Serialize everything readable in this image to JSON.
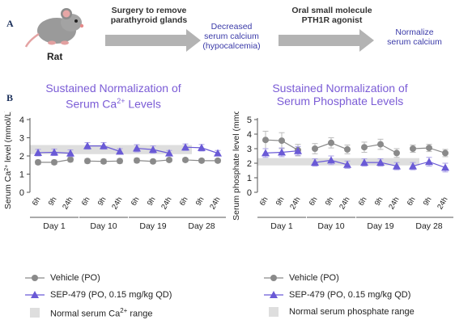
{
  "panels": {
    "a": "A",
    "b": "B"
  },
  "pipeline": {
    "animal_label": "Rat",
    "step1_text_line1": "Surgery to remove",
    "step1_text_line2": "parathyroid glands",
    "result1_line1": "Decreased",
    "result1_line2": "serum calcium",
    "result1_line3": "(hypocalcemia)",
    "step2_text_line1": "Oral small molecule",
    "step2_text_line2": "PTH1R agonist",
    "result2_line1": "Normalize",
    "result2_line2": "serum calcium"
  },
  "legend": {
    "vehicle": "Vehicle (PO)",
    "sep": "SEP-479 (PO, 0.15 mg/kg QD)",
    "normal_ca_prefix": "Normal serum Ca",
    "normal_ca_sup": "2+",
    "normal_ca_suffix": " range",
    "normal_phos": "Normal serum phosphate range"
  },
  "colors": {
    "vehicle": "#8a8a8a",
    "sep": "#6a5ad6",
    "band": "#dedede",
    "title": "#7b5cd6"
  },
  "chart_data": [
    {
      "type": "line",
      "title_line1": "Sustained Normalization of",
      "title_line2_prefix": "Serum Ca",
      "title_line2_sup": "2+",
      "title_line2_suffix": " Levels",
      "ylabel_prefix": "Serum Ca",
      "ylabel_sup": "2+",
      "ylabel_suffix": " level (mmol/L)",
      "ylim": [
        0,
        4
      ],
      "yticks": [
        "0",
        "1",
        "2",
        "3",
        "4"
      ],
      "groups": [
        "Day 1",
        "Day 10",
        "Day 19",
        "Day 28"
      ],
      "timepoints": [
        "6h",
        "9h",
        "24h"
      ],
      "normal_range": [
        2.1,
        2.6
      ],
      "series": [
        {
          "name": "Vehicle (PO)",
          "values": [
            [
              1.65,
              1.65,
              1.8
            ],
            [
              1.72,
              1.7,
              1.72
            ],
            [
              1.75,
              1.7,
              1.78
            ],
            [
              1.78,
              1.74,
              1.74
            ]
          ],
          "errors": [
            [
              0.12,
              0.12,
              0.12
            ],
            [
              0.12,
              0.12,
              0.12
            ],
            [
              0.12,
              0.1,
              0.1
            ],
            [
              0.1,
              0.1,
              0.1
            ]
          ]
        },
        {
          "name": "SEP-479 (PO, 0.15 mg/kg QD)",
          "values": [
            [
              2.18,
              2.2,
              2.15
            ],
            [
              2.55,
              2.55,
              2.25
            ],
            [
              2.42,
              2.35,
              2.15
            ],
            [
              2.48,
              2.45,
              2.15
            ]
          ],
          "errors": [
            [
              0.18,
              0.18,
              0.18
            ],
            [
              0.18,
              0.18,
              0.15
            ],
            [
              0.2,
              0.2,
              0.15
            ],
            [
              0.18,
              0.18,
              0.15
            ]
          ]
        }
      ]
    },
    {
      "type": "line",
      "title_line1": "Sustained Normalization of",
      "title_line2_prefix": "Serum Phosphate Levels",
      "title_line2_sup": "",
      "title_line2_suffix": "",
      "ylabel_prefix": "Serum phosphate level (mmol/L)",
      "ylabel_sup": "",
      "ylabel_suffix": "",
      "ylim": [
        0,
        5
      ],
      "yticks": [
        "0",
        "1",
        "2",
        "3",
        "4",
        "5"
      ],
      "groups": [
        "Day 1",
        "Day 10",
        "Day 19",
        "Day 28"
      ],
      "timepoints": [
        "6h",
        "9h",
        "24h"
      ],
      "normal_range": [
        1.85,
        2.35
      ],
      "series": [
        {
          "name": "Vehicle (PO)",
          "values": [
            [
              3.6,
              3.55,
              2.9
            ],
            [
              3.0,
              3.4,
              2.95
            ],
            [
              3.1,
              3.3,
              2.7
            ],
            [
              3.0,
              3.05,
              2.7
            ]
          ],
          "errors": [
            [
              0.6,
              0.55,
              0.4
            ],
            [
              0.35,
              0.35,
              0.3
            ],
            [
              0.35,
              0.35,
              0.3
            ],
            [
              0.25,
              0.25,
              0.25
            ]
          ]
        },
        {
          "name": "SEP-479 (PO, 0.15 mg/kg QD)",
          "values": [
            [
              2.7,
              2.75,
              2.85
            ],
            [
              2.05,
              2.2,
              1.9
            ],
            [
              2.05,
              2.05,
              1.8
            ],
            [
              1.8,
              2.1,
              1.7
            ]
          ],
          "errors": [
            [
              0.3,
              0.3,
              0.3
            ],
            [
              0.25,
              0.3,
              0.25
            ],
            [
              0.25,
              0.25,
              0.25
            ],
            [
              0.25,
              0.3,
              0.3
            ]
          ]
        }
      ]
    }
  ]
}
